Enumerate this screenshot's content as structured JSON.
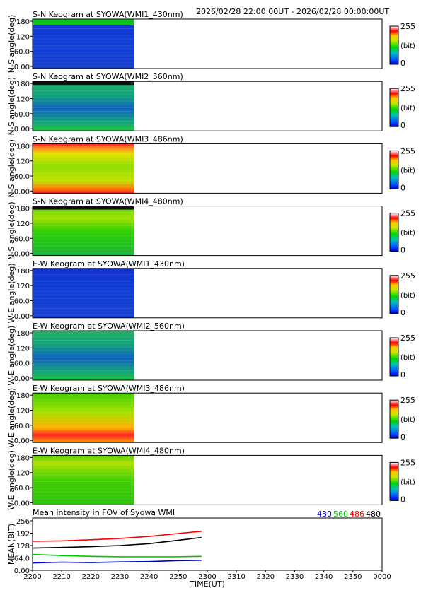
{
  "header": {
    "time_range": "2026/02/28 22:00:00UT - 2026/02/28 00:00:00UT"
  },
  "colorbar": {
    "max_label": "255",
    "unit_label": "(bit)",
    "min_label": "0"
  },
  "colors": {
    "low": "#0000c8",
    "mid": "#00d800",
    "high": "#ff0000",
    "top": "#ffffff"
  },
  "chart_data": [
    {
      "type": "heatmap",
      "title": "S-N Keogram at SYOWA(WMI1_430nm)",
      "ylabel": "N-S angle(deg)",
      "yticks": [
        "180",
        "120",
        "60.0",
        "0.00"
      ],
      "ylim": [
        0,
        180
      ],
      "xlim": [
        2200,
        2400
      ],
      "data_end": 2258,
      "zlim": [
        0,
        255
      ],
      "pattern": "blue",
      "level": 0.2,
      "top_band": "green"
    },
    {
      "type": "heatmap",
      "title": "S-N Keogram at SYOWA(WMI2_560nm)",
      "ylabel": "N-S angle(deg)",
      "yticks": [
        "180",
        "120",
        "60.0",
        "0.00"
      ],
      "ylim": [
        0,
        180
      ],
      "xlim": [
        2200,
        2400
      ],
      "data_end": 2258,
      "zlim": [
        0,
        255
      ],
      "pattern": "mixed",
      "level": 0.27,
      "top_band": "dark"
    },
    {
      "type": "heatmap",
      "title": "S-N Keogram at SYOWA(WMI3_486nm)",
      "ylabel": "N-S angle(deg)",
      "yticks": [
        "180",
        "120",
        "60.0",
        "0.00"
      ],
      "ylim": [
        0,
        180
      ],
      "xlim": [
        2200,
        2400
      ],
      "data_end": 2258,
      "zlim": [
        0,
        255
      ],
      "pattern": "bright-edges",
      "level": 0.55,
      "top_band": "none"
    },
    {
      "type": "heatmap",
      "title": "S-N Keogram at SYOWA(WMI4_480nm)",
      "ylabel": "N-S angle(deg)",
      "yticks": [
        "180",
        "120",
        "60.0",
        "0.00"
      ],
      "ylim": [
        0,
        180
      ],
      "xlim": [
        2200,
        2400
      ],
      "data_end": 2258,
      "zlim": [
        0,
        255
      ],
      "pattern": "green-yellow",
      "level": 0.45,
      "top_band": "dark"
    },
    {
      "type": "heatmap",
      "title": "E-W Keogram at SYOWA(WMI1_430nm)",
      "ylabel": "W-E angle(deg)",
      "yticks": [
        "180",
        "120",
        "60.0",
        "0.00"
      ],
      "ylim": [
        0,
        180
      ],
      "xlim": [
        2200,
        2400
      ],
      "data_end": 2258,
      "zlim": [
        0,
        255
      ],
      "pattern": "blue",
      "level": 0.18,
      "top_band": "none"
    },
    {
      "type": "heatmap",
      "title": "E-W Keogram at SYOWA(WMI2_560nm)",
      "ylabel": "W-E angle(deg)",
      "yticks": [
        "180",
        "120",
        "60.0",
        "0.00"
      ],
      "ylim": [
        0,
        180
      ],
      "xlim": [
        2200,
        2400
      ],
      "data_end": 2258,
      "zlim": [
        0,
        255
      ],
      "pattern": "mixed",
      "level": 0.25,
      "top_band": "none"
    },
    {
      "type": "heatmap",
      "title": "E-W Keogram at SYOWA(WMI3_486nm)",
      "ylabel": "W-E angle(deg)",
      "yticks": [
        "180",
        "120",
        "60.0",
        "0.00"
      ],
      "ylim": [
        0,
        180
      ],
      "xlim": [
        2200,
        2400
      ],
      "data_end": 2258,
      "zlim": [
        0,
        255
      ],
      "pattern": "bright-bottom",
      "level": 0.55,
      "top_band": "none"
    },
    {
      "type": "heatmap",
      "title": "E-W Keogram at SYOWA(WMI4_480nm)",
      "ylabel": "W-E angle(deg)",
      "yticks": [
        "180",
        "120",
        "60.0",
        "0.00"
      ],
      "ylim": [
        0,
        180
      ],
      "xlim": [
        2200,
        2400
      ],
      "data_end": 2258,
      "zlim": [
        0,
        255
      ],
      "pattern": "green-yellow-top",
      "level": 0.45,
      "top_band": "none"
    },
    {
      "type": "line",
      "title": "Mean intensity in FOV of Syowa WMI",
      "xlabel": "TIME(UT)",
      "ylabel": "MEAN(BIT)",
      "xlim": [
        2200,
        2400
      ],
      "ylim": [
        0,
        256
      ],
      "yticks": [
        {
          "v": 256,
          "label": "256"
        },
        {
          "v": 192,
          "label": "192"
        },
        {
          "v": 128,
          "label": "128"
        },
        {
          "v": 64,
          "label": "64.0"
        },
        {
          "v": 0,
          "label": "0.00"
        }
      ],
      "xticks": [
        {
          "v": 2200,
          "label": "2200"
        },
        {
          "v": 2210,
          "label": "2210"
        },
        {
          "v": 2220,
          "label": "2220"
        },
        {
          "v": 2230,
          "label": "2230"
        },
        {
          "v": 2240,
          "label": "2240"
        },
        {
          "v": 2250,
          "label": "2250"
        },
        {
          "v": 2260,
          "label": "2300"
        },
        {
          "v": 2270,
          "label": "2310"
        },
        {
          "v": 2280,
          "label": "2320"
        },
        {
          "v": 2290,
          "label": "2330"
        },
        {
          "v": 2300,
          "label": "2340"
        },
        {
          "v": 2310,
          "label": "2350"
        },
        {
          "v": 2320,
          "label": "0000"
        }
      ],
      "x": [
        2200,
        2210,
        2220,
        2230,
        2240,
        2250,
        2258
      ],
      "series": [
        {
          "name": "430",
          "color": "#0000c8",
          "values": [
            38,
            42,
            40,
            43,
            45,
            50,
            52
          ]
        },
        {
          "name": "560",
          "color": "#00c800",
          "values": [
            82,
            76,
            72,
            70,
            70,
            70,
            72
          ]
        },
        {
          "name": "486",
          "color": "#ff0000",
          "values": [
            150,
            152,
            158,
            165,
            175,
            190,
            202
          ]
        },
        {
          "name": "480",
          "color": "#000000",
          "values": [
            115,
            118,
            122,
            128,
            138,
            155,
            170
          ]
        }
      ]
    }
  ]
}
